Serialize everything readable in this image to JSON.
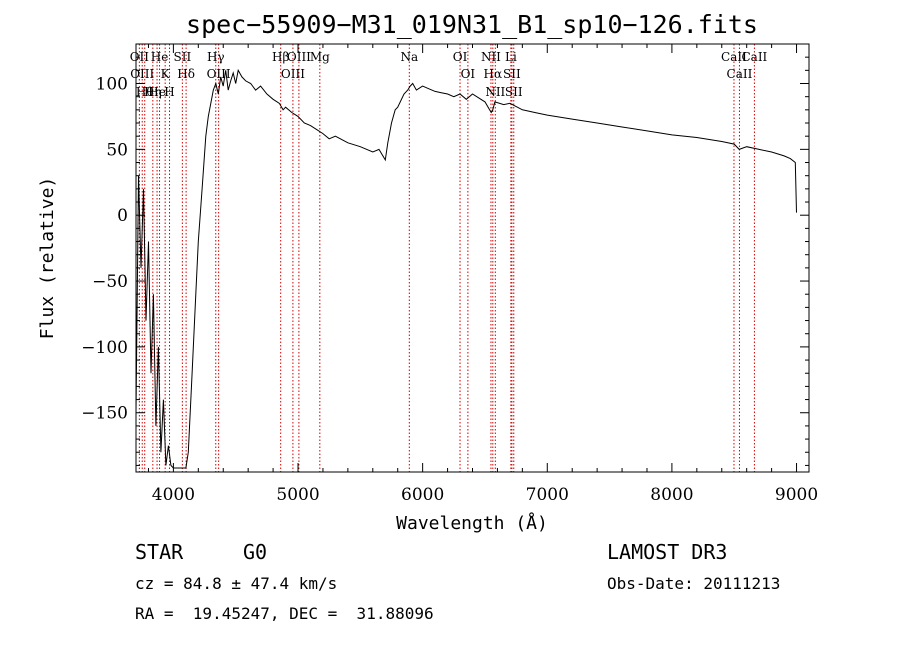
{
  "chart_data": {
    "type": "line",
    "title": "spec−55909−M31_019N31_B1_sp10−126.fits",
    "xlabel": "Wavelength (Å)",
    "ylabel": "Flux (relative)",
    "xlim": [
      3700,
      9100
    ],
    "ylim": [
      -195,
      130
    ],
    "x_ticks": [
      4000,
      5000,
      6000,
      7000,
      8000,
      9000
    ],
    "y_ticks": [
      -150,
      -100,
      -50,
      0,
      50,
      100
    ],
    "y_tick_labels": [
      "−150",
      "−100",
      "−50",
      "0",
      "50",
      "100"
    ],
    "series": [
      {
        "name": "spectrum",
        "x": [
          3700,
          3720,
          3740,
          3760,
          3780,
          3800,
          3820,
          3840,
          3860,
          3880,
          3900,
          3920,
          3940,
          3960,
          3980,
          4000,
          4050,
          4100,
          4120,
          4150,
          4180,
          4200,
          4230,
          4260,
          4280,
          4300,
          4320,
          4340,
          4360,
          4380,
          4400,
          4420,
          4440,
          4460,
          4480,
          4500,
          4520,
          4550,
          4580,
          4620,
          4660,
          4700,
          4750,
          4800,
          4850,
          4880,
          4900,
          4950,
          5000,
          5050,
          5100,
          5150,
          5200,
          5250,
          5300,
          5400,
          5500,
          5600,
          5650,
          5700,
          5720,
          5750,
          5780,
          5800,
          5850,
          5880,
          5900,
          5920,
          5950,
          6000,
          6050,
          6100,
          6150,
          6200,
          6250,
          6300,
          6350,
          6400,
          6500,
          6550,
          6563,
          6580,
          6650,
          6700,
          6800,
          6900,
          7000,
          7200,
          7400,
          7600,
          7800,
          8000,
          8200,
          8400,
          8500,
          8540,
          8600,
          8700,
          8800,
          8900,
          8950,
          8990,
          9000
        ],
        "y": [
          -150,
          30,
          -40,
          20,
          -80,
          -20,
          -120,
          -60,
          -160,
          -100,
          -180,
          -140,
          -190,
          -175,
          -190,
          -192,
          -192,
          -192,
          -180,
          -120,
          -60,
          -20,
          20,
          60,
          75,
          85,
          95,
          100,
          92,
          105,
          98,
          110,
          95,
          102,
          108,
          100,
          110,
          105,
          102,
          100,
          95,
          98,
          92,
          88,
          85,
          80,
          82,
          78,
          75,
          70,
          68,
          65,
          62,
          58,
          60,
          55,
          52,
          48,
          50,
          42,
          55,
          70,
          80,
          82,
          92,
          95,
          98,
          100,
          95,
          98,
          96,
          94,
          93,
          92,
          90,
          92,
          88,
          92,
          86,
          78,
          80,
          86,
          84,
          85,
          80,
          78,
          76,
          73,
          70,
          67,
          64,
          61,
          59,
          56,
          54,
          50,
          52,
          50,
          48,
          45,
          43,
          40,
          2
        ]
      }
    ],
    "line_markers": [
      {
        "wavelength": 3727,
        "labels": [
          "OII"
        ]
      },
      {
        "wavelength": 3750,
        "labels": [
          "OIII"
        ]
      },
      {
        "wavelength": 3770,
        "labels": [
          "Hθ"
        ]
      },
      {
        "wavelength": 3835,
        "labels": [
          "Hη"
        ]
      },
      {
        "wavelength": 3869,
        "labels": [
          "He"
        ]
      },
      {
        "wavelength": 3889,
        "labels": [
          "He"
        ]
      },
      {
        "wavelength": 3934,
        "labels": [
          "K"
        ]
      },
      {
        "wavelength": 3969,
        "labels": [
          "H"
        ]
      },
      {
        "wavelength": 4072,
        "labels": [
          "SII"
        ]
      },
      {
        "wavelength": 4102,
        "labels": [
          "Hδ"
        ]
      },
      {
        "wavelength": 4340,
        "labels": [
          "Hγ"
        ]
      },
      {
        "wavelength": 4363,
        "labels": [
          "OIII"
        ]
      },
      {
        "wavelength": 4861,
        "labels": [
          "Hβ"
        ]
      },
      {
        "wavelength": 4959,
        "labels": [
          "OIII"
        ]
      },
      {
        "wavelength": 5007,
        "labels": [
          "OIII"
        ]
      },
      {
        "wavelength": 5175,
        "labels": [
          "Mg"
        ]
      },
      {
        "wavelength": 5893,
        "labels": [
          "Na"
        ]
      },
      {
        "wavelength": 6300,
        "labels": [
          "OI"
        ]
      },
      {
        "wavelength": 6363,
        "labels": [
          "OI"
        ]
      },
      {
        "wavelength": 6548,
        "labels": [
          "NII"
        ]
      },
      {
        "wavelength": 6563,
        "labels": [
          "Hα"
        ]
      },
      {
        "wavelength": 6583,
        "labels": [
          "NII"
        ]
      },
      {
        "wavelength": 6708,
        "labels": [
          "Li"
        ]
      },
      {
        "wavelength": 6716,
        "labels": [
          "SII"
        ]
      },
      {
        "wavelength": 6731,
        "labels": [
          "SII"
        ]
      },
      {
        "wavelength": 8498,
        "labels": [
          "CaII"
        ]
      },
      {
        "wavelength": 8542,
        "labels": [
          "CaII"
        ]
      },
      {
        "wavelength": 8662,
        "labels": [
          "CaII"
        ]
      }
    ]
  },
  "info": {
    "object_class": "STAR",
    "subclass": "G0",
    "survey": "LAMOST DR3",
    "redshift": "cz = 84.8 ± 47.4 km/s",
    "obs_date": "Obs-Date: 20111213",
    "coords": "RA =  19.45247, DEC =  31.88096"
  },
  "colors": {
    "line_marker": "#d40000",
    "spectrum": "#000000"
  }
}
